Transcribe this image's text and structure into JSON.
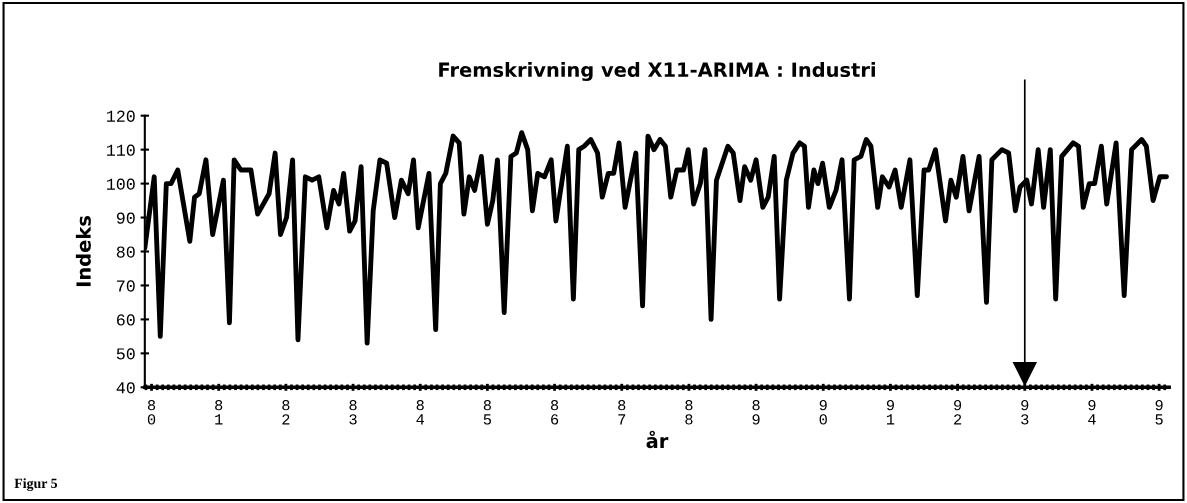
{
  "chart_data": {
    "type": "line",
    "title": "Fremskrivning ved X11-ARIMA : Industri",
    "xlabel": "år",
    "ylabel": "Indeks",
    "annotations": [
      "Figur 5"
    ],
    "xlim": [
      79.9,
      95.15
    ],
    "ylim": [
      40,
      120
    ],
    "xticks": [
      80,
      81,
      82,
      83,
      84,
      85,
      86,
      87,
      88,
      89,
      90,
      91,
      92,
      93,
      94,
      95
    ],
    "yticks": [
      40,
      50,
      60,
      70,
      80,
      90,
      100,
      110,
      120
    ],
    "grid": false,
    "legend": false,
    "marker": "none",
    "line_style": "solid",
    "ref_lines": [
      {
        "axis": "x",
        "value": 93,
        "color": "#000000"
      }
    ],
    "series": [
      {
        "color": "#000000",
        "x": [
          79.9,
          80.04,
          80.13,
          80.22,
          80.29,
          80.39,
          80.57,
          80.64,
          80.71,
          80.81,
          80.91,
          81.07,
          81.16,
          81.23,
          81.33,
          81.48,
          81.58,
          81.75,
          81.84,
          81.92,
          82.01,
          82.1,
          82.18,
          82.29,
          82.39,
          82.49,
          82.61,
          82.71,
          82.79,
          82.86,
          82.95,
          83.03,
          83.12,
          83.21,
          83.3,
          83.4,
          83.5,
          83.62,
          83.72,
          83.82,
          83.9,
          83.97,
          84.13,
          84.23,
          84.3,
          84.38,
          84.49,
          84.58,
          84.65,
          84.73,
          84.81,
          84.91,
          85.0,
          85.08,
          85.15,
          85.25,
          85.35,
          85.43,
          85.51,
          85.6,
          85.67,
          85.75,
          85.85,
          85.95,
          86.02,
          86.19,
          86.28,
          86.36,
          86.44,
          86.54,
          86.64,
          86.71,
          86.8,
          86.88,
          86.96,
          87.05,
          87.21,
          87.31,
          87.39,
          87.48,
          87.57,
          87.65,
          87.73,
          87.82,
          87.92,
          87.99,
          88.07,
          88.17,
          88.24,
          88.33,
          88.41,
          88.58,
          88.66,
          88.76,
          88.83,
          88.92,
          89.0,
          89.1,
          89.18,
          89.27,
          89.35,
          89.45,
          89.55,
          89.65,
          89.72,
          89.78,
          89.86,
          89.92,
          89.99,
          90.09,
          90.19,
          90.28,
          90.39,
          90.46,
          90.56,
          90.64,
          90.71,
          90.81,
          90.88,
          90.98,
          91.07,
          91.16,
          91.29,
          91.4,
          91.5,
          91.57,
          91.67,
          91.82,
          91.9,
          91.98,
          92.08,
          92.17,
          92.32,
          92.43,
          92.51,
          92.66,
          92.76,
          92.86,
          92.93,
          93.03,
          93.1,
          93.2,
          93.28,
          93.38,
          93.46,
          93.55,
          93.72,
          93.8,
          93.87,
          93.96,
          94.04,
          94.14,
          94.22,
          94.36,
          94.48,
          94.59,
          94.74,
          94.81,
          94.91,
          95.01,
          95.11
        ],
        "values": [
          81,
          102,
          55,
          100,
          100,
          104,
          83,
          96,
          97,
          107,
          85,
          101,
          59,
          107,
          104,
          104,
          91,
          97,
          109,
          85,
          90,
          107,
          54,
          102,
          101,
          102,
          87,
          98,
          94,
          103,
          86,
          89,
          105,
          53,
          92,
          107,
          106,
          90,
          101,
          97,
          107,
          87,
          103,
          57,
          100,
          103,
          114,
          112,
          91,
          102,
          98,
          108,
          88,
          95,
          107,
          62,
          108,
          109,
          115,
          110,
          92,
          103,
          102,
          107,
          89,
          111,
          66,
          110,
          111,
          113,
          109,
          96,
          103,
          103,
          112,
          93,
          109,
          64,
          114,
          110,
          113,
          111,
          96,
          104,
          104,
          110,
          94,
          100,
          110,
          60,
          101,
          111,
          109,
          95,
          105,
          101,
          107,
          93,
          96,
          108,
          66,
          101,
          109,
          112,
          111,
          93,
          104,
          100,
          106,
          93,
          98,
          107,
          66,
          107,
          108,
          113,
          111,
          93,
          102,
          99,
          104,
          93,
          107,
          67,
          104,
          104,
          110,
          89,
          101,
          96,
          108,
          92,
          108,
          65,
          107,
          110,
          109,
          92,
          99,
          101,
          94,
          110,
          93,
          110,
          66,
          108,
          112,
          111,
          93,
          100,
          100,
          111,
          94,
          112,
          67,
          110,
          113,
          111,
          95,
          102,
          102
        ]
      }
    ]
  }
}
